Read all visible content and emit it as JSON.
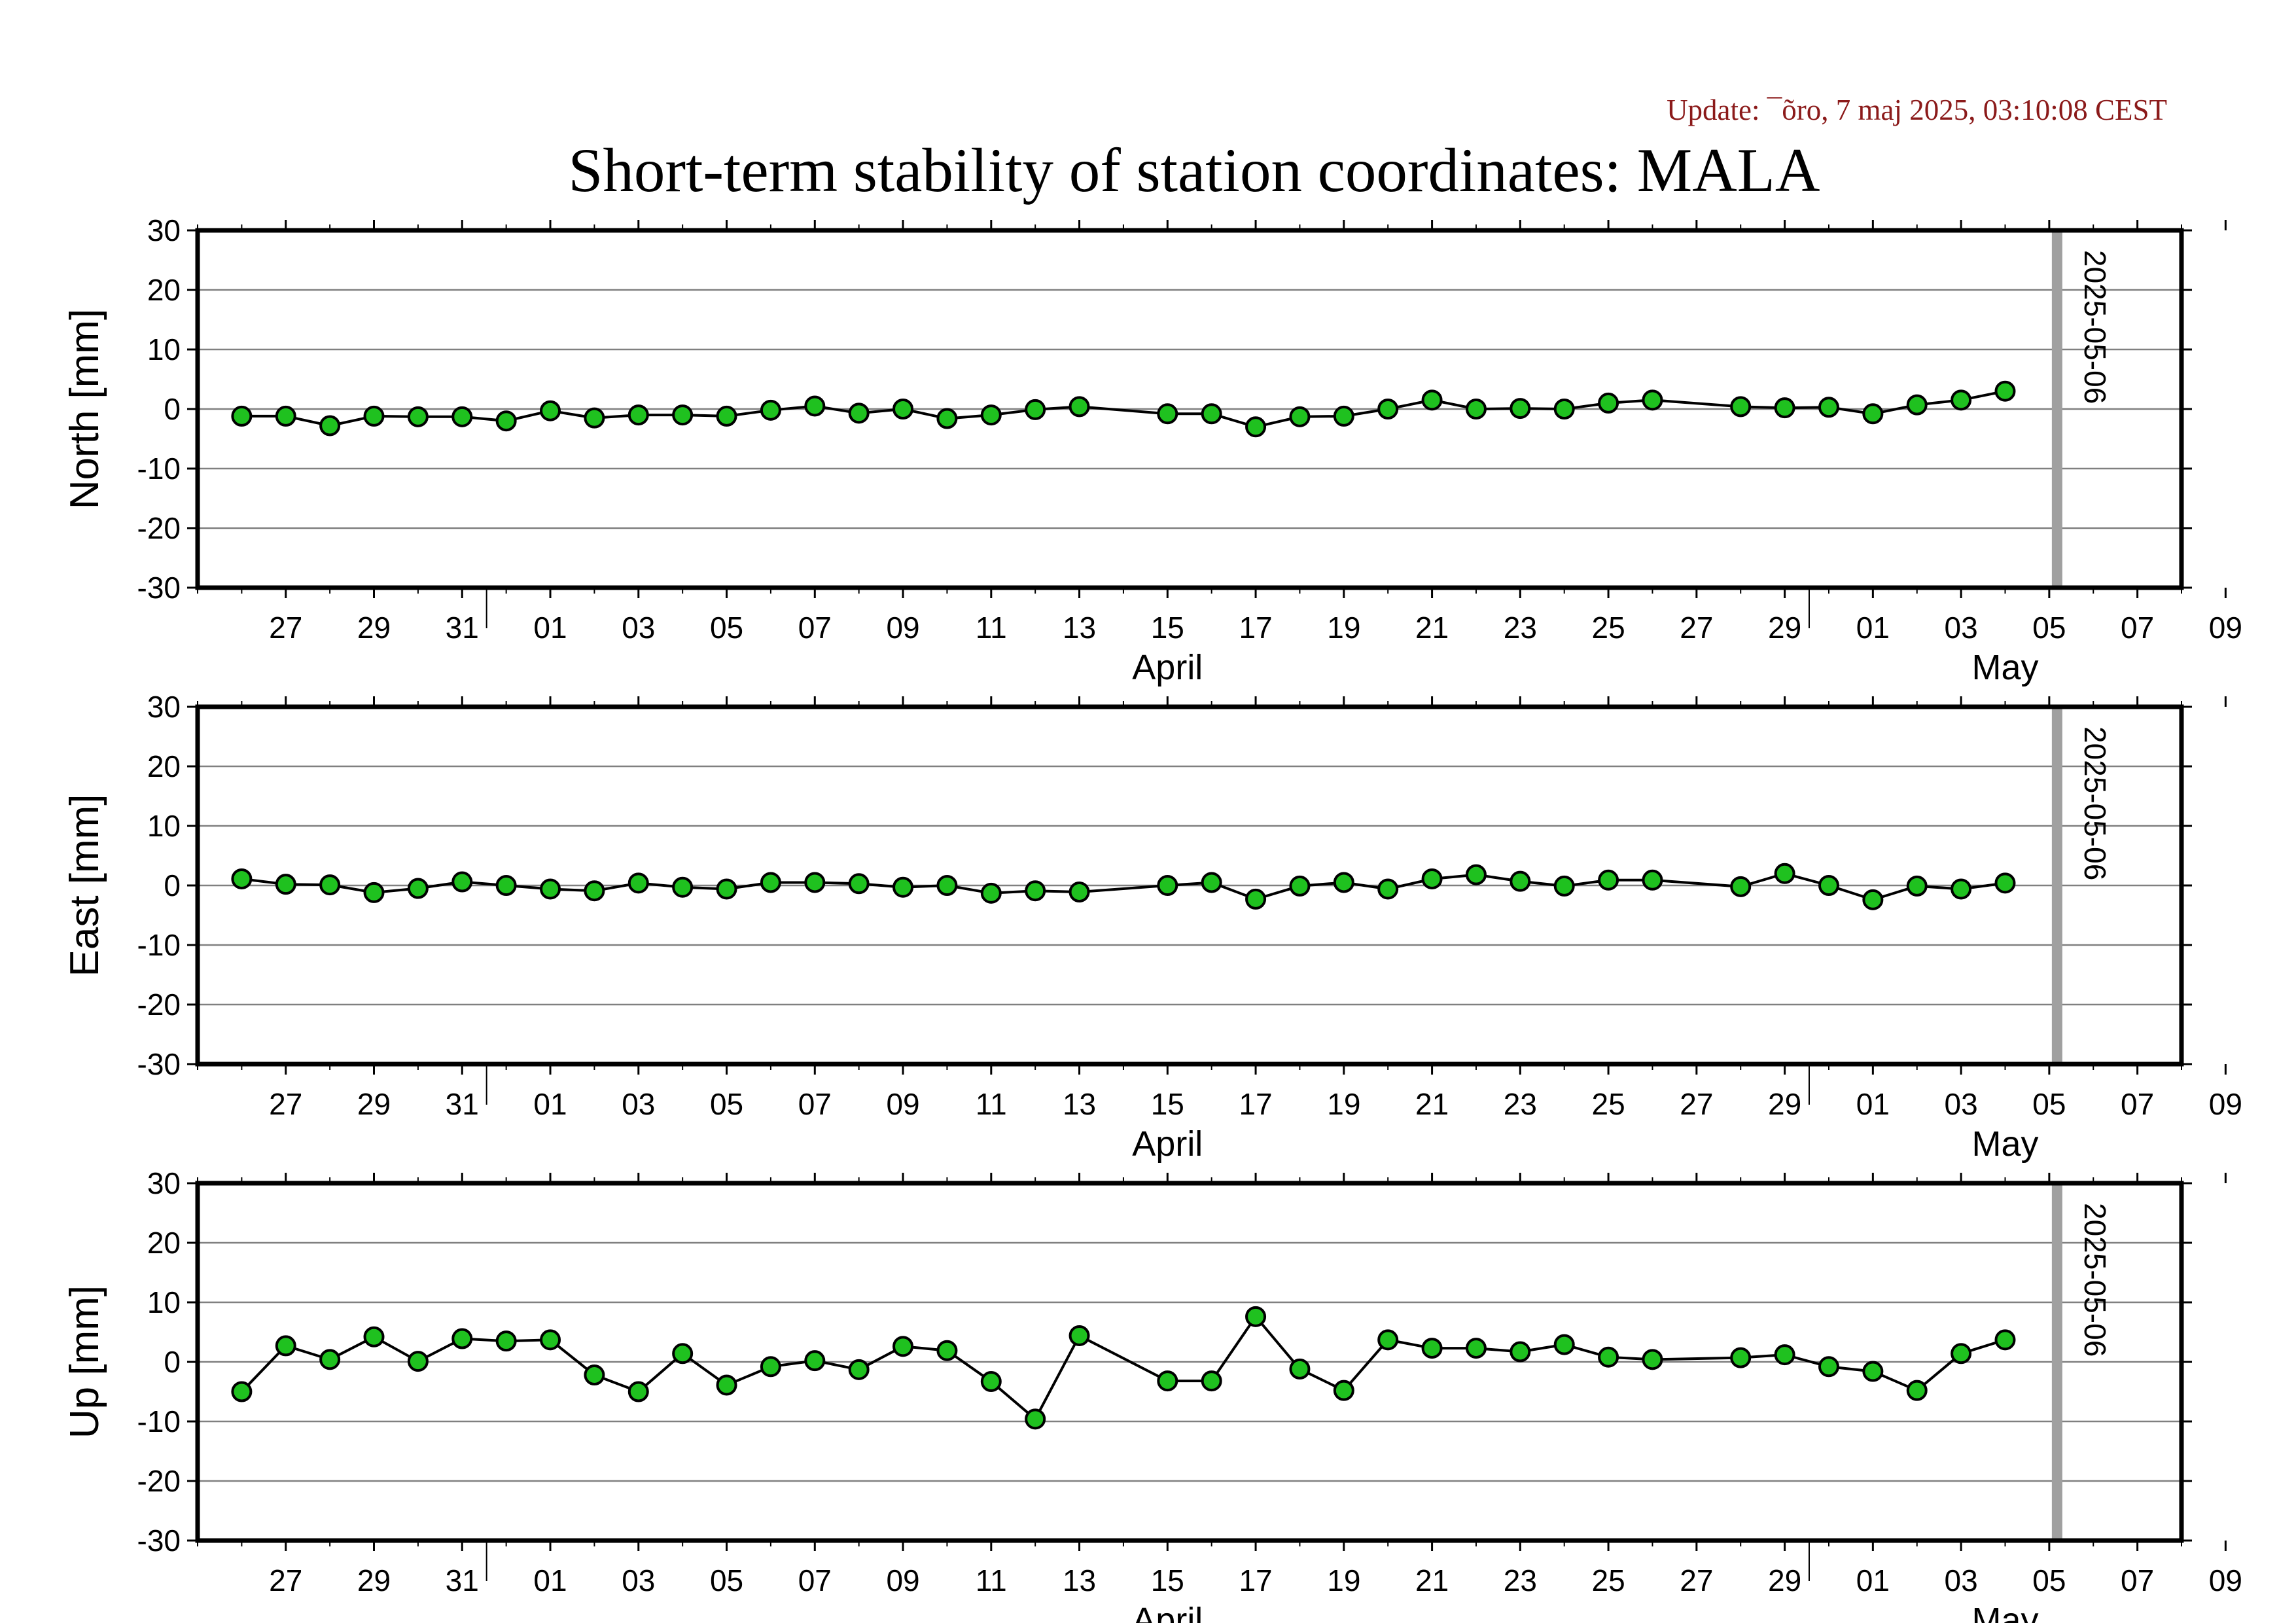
{
  "update_text": "Update: ¯õro, 7 maj 2025, 03:10:08 CEST",
  "title": "Short-term stability of station coordinates: MALA",
  "colors": {
    "marker_fill": "#1fc11f",
    "marker_stroke": "#000000",
    "line": "#000000",
    "gridline": "#808080",
    "marker_bar": "#a0a0a0",
    "update_text": "#8b1a1a"
  },
  "chart_data": [
    {
      "type": "line",
      "ylabel": "North [mm]",
      "ylim": [
        -30,
        30
      ],
      "yticks": [
        "30",
        "20",
        "10",
        "0",
        "-10",
        "-20",
        "-30"
      ],
      "xlim": [
        "2025-03-25",
        "2025-05-09"
      ],
      "xtick_labels": [
        "27",
        "29",
        "31",
        "01",
        "03",
        "05",
        "07",
        "09",
        "11",
        "13",
        "15",
        "17",
        "19",
        "21",
        "23",
        "25",
        "27",
        "29",
        "01",
        "03",
        "05",
        "07",
        "09"
      ],
      "month_labels": [
        "April",
        "May"
      ],
      "grid": "horizontal",
      "vertical_marker": {
        "date": "2025-05-06",
        "label": "2025-05-06"
      },
      "series": [
        {
          "x": [
            "2025-03-26",
            "2025-03-27",
            "2025-03-28",
            "2025-03-29",
            "2025-03-30",
            "2025-03-31",
            "2025-04-01",
            "2025-04-02",
            "2025-04-03",
            "2025-04-04",
            "2025-04-05",
            "2025-04-06",
            "2025-04-07",
            "2025-04-08",
            "2025-04-09",
            "2025-04-10",
            "2025-04-11",
            "2025-04-12",
            "2025-04-13",
            "2025-04-14",
            "2025-04-16",
            "2025-04-17",
            "2025-04-18",
            "2025-04-19",
            "2025-04-20",
            "2025-04-21",
            "2025-04-22",
            "2025-04-23",
            "2025-04-24",
            "2025-04-25",
            "2025-04-26",
            "2025-04-27",
            "2025-04-29",
            "2025-04-30",
            "2025-05-01",
            "2025-05-02",
            "2025-05-03",
            "2025-05-04",
            "2025-05-05"
          ],
          "y": [
            -1.2,
            -1.2,
            -2.8,
            -1.2,
            -1.3,
            -1.3,
            -2.0,
            -0.3,
            -1.5,
            -1.0,
            -1.0,
            -1.2,
            -0.2,
            0.5,
            -0.7,
            0.0,
            -1.6,
            -1.0,
            -0.1,
            0.4,
            -0.8,
            -0.8,
            -3.0,
            -1.3,
            -1.2,
            0.0,
            1.5,
            0.0,
            0.1,
            0.0,
            1.0,
            1.5,
            0.4,
            0.2,
            0.3,
            -0.8,
            0.7,
            1.5,
            3.0
          ]
        }
      ]
    },
    {
      "type": "line",
      "ylabel": "East [mm]",
      "ylim": [
        -30,
        30
      ],
      "yticks": [
        "30",
        "20",
        "10",
        "0",
        "-10",
        "-20",
        "-30"
      ],
      "xlim": [
        "2025-03-25",
        "2025-05-09"
      ],
      "xtick_labels": [
        "27",
        "29",
        "31",
        "01",
        "03",
        "05",
        "07",
        "09",
        "11",
        "13",
        "15",
        "17",
        "19",
        "21",
        "23",
        "25",
        "27",
        "29",
        "01",
        "03",
        "05",
        "07",
        "09"
      ],
      "month_labels": [
        "April",
        "May"
      ],
      "grid": "horizontal",
      "vertical_marker": {
        "date": "2025-05-06",
        "label": "2025-05-06"
      },
      "series": [
        {
          "x": [
            "2025-03-26",
            "2025-03-27",
            "2025-03-28",
            "2025-03-29",
            "2025-03-30",
            "2025-03-31",
            "2025-04-01",
            "2025-04-02",
            "2025-04-03",
            "2025-04-04",
            "2025-04-05",
            "2025-04-06",
            "2025-04-07",
            "2025-04-08",
            "2025-04-09",
            "2025-04-10",
            "2025-04-11",
            "2025-04-12",
            "2025-04-13",
            "2025-04-14",
            "2025-04-16",
            "2025-04-17",
            "2025-04-18",
            "2025-04-19",
            "2025-04-20",
            "2025-04-21",
            "2025-04-22",
            "2025-04-23",
            "2025-04-24",
            "2025-04-25",
            "2025-04-26",
            "2025-04-27",
            "2025-04-29",
            "2025-04-30",
            "2025-05-01",
            "2025-05-02",
            "2025-05-03",
            "2025-05-04",
            "2025-05-05"
          ],
          "y": [
            1.1,
            0.2,
            0.1,
            -1.2,
            -0.5,
            0.6,
            0.0,
            -0.6,
            -0.9,
            0.4,
            -0.3,
            -0.6,
            0.5,
            0.5,
            0.3,
            -0.3,
            0.0,
            -1.3,
            -0.9,
            -1.1,
            0.0,
            0.5,
            -2.3,
            -0.1,
            0.5,
            -0.6,
            1.1,
            1.8,
            0.7,
            -0.1,
            0.9,
            0.9,
            -0.2,
            2.0,
            0.0,
            -2.4,
            -0.1,
            -0.6,
            0.4
          ]
        }
      ]
    },
    {
      "type": "line",
      "ylabel": "Up [mm]",
      "ylim": [
        -30,
        30
      ],
      "yticks": [
        "30",
        "20",
        "10",
        "0",
        "-10",
        "-20",
        "-30"
      ],
      "xlim": [
        "2025-03-25",
        "2025-05-09"
      ],
      "xtick_labels": [
        "27",
        "29",
        "31",
        "01",
        "03",
        "05",
        "07",
        "09",
        "11",
        "13",
        "15",
        "17",
        "19",
        "21",
        "23",
        "25",
        "27",
        "29",
        "01",
        "03",
        "05",
        "07",
        "09"
      ],
      "month_labels": [
        "April",
        "May"
      ],
      "grid": "horizontal",
      "vertical_marker": {
        "date": "2025-05-06",
        "label": "2025-05-06"
      },
      "series": [
        {
          "x": [
            "2025-03-26",
            "2025-03-27",
            "2025-03-28",
            "2025-03-29",
            "2025-03-30",
            "2025-03-31",
            "2025-04-01",
            "2025-04-02",
            "2025-04-03",
            "2025-04-04",
            "2025-04-05",
            "2025-04-06",
            "2025-04-07",
            "2025-04-08",
            "2025-04-09",
            "2025-04-10",
            "2025-04-11",
            "2025-04-12",
            "2025-04-13",
            "2025-04-14",
            "2025-04-16",
            "2025-04-17",
            "2025-04-18",
            "2025-04-19",
            "2025-04-20",
            "2025-04-21",
            "2025-04-22",
            "2025-04-23",
            "2025-04-24",
            "2025-04-25",
            "2025-04-26",
            "2025-04-27",
            "2025-04-29",
            "2025-04-30",
            "2025-05-01",
            "2025-05-02",
            "2025-05-03",
            "2025-05-04",
            "2025-05-05"
          ],
          "y": [
            -5.0,
            2.7,
            0.4,
            4.2,
            0.1,
            3.9,
            3.5,
            3.7,
            -2.2,
            -5.0,
            1.4,
            -3.9,
            -0.8,
            0.2,
            -1.3,
            2.6,
            1.9,
            -3.3,
            -9.6,
            4.4,
            -3.2,
            -3.2,
            7.6,
            -1.2,
            -4.8,
            3.7,
            2.3,
            2.3,
            1.7,
            2.9,
            0.8,
            0.4,
            0.7,
            1.2,
            -0.8,
            -1.6,
            -4.8,
            1.4,
            3.7
          ]
        }
      ]
    }
  ]
}
